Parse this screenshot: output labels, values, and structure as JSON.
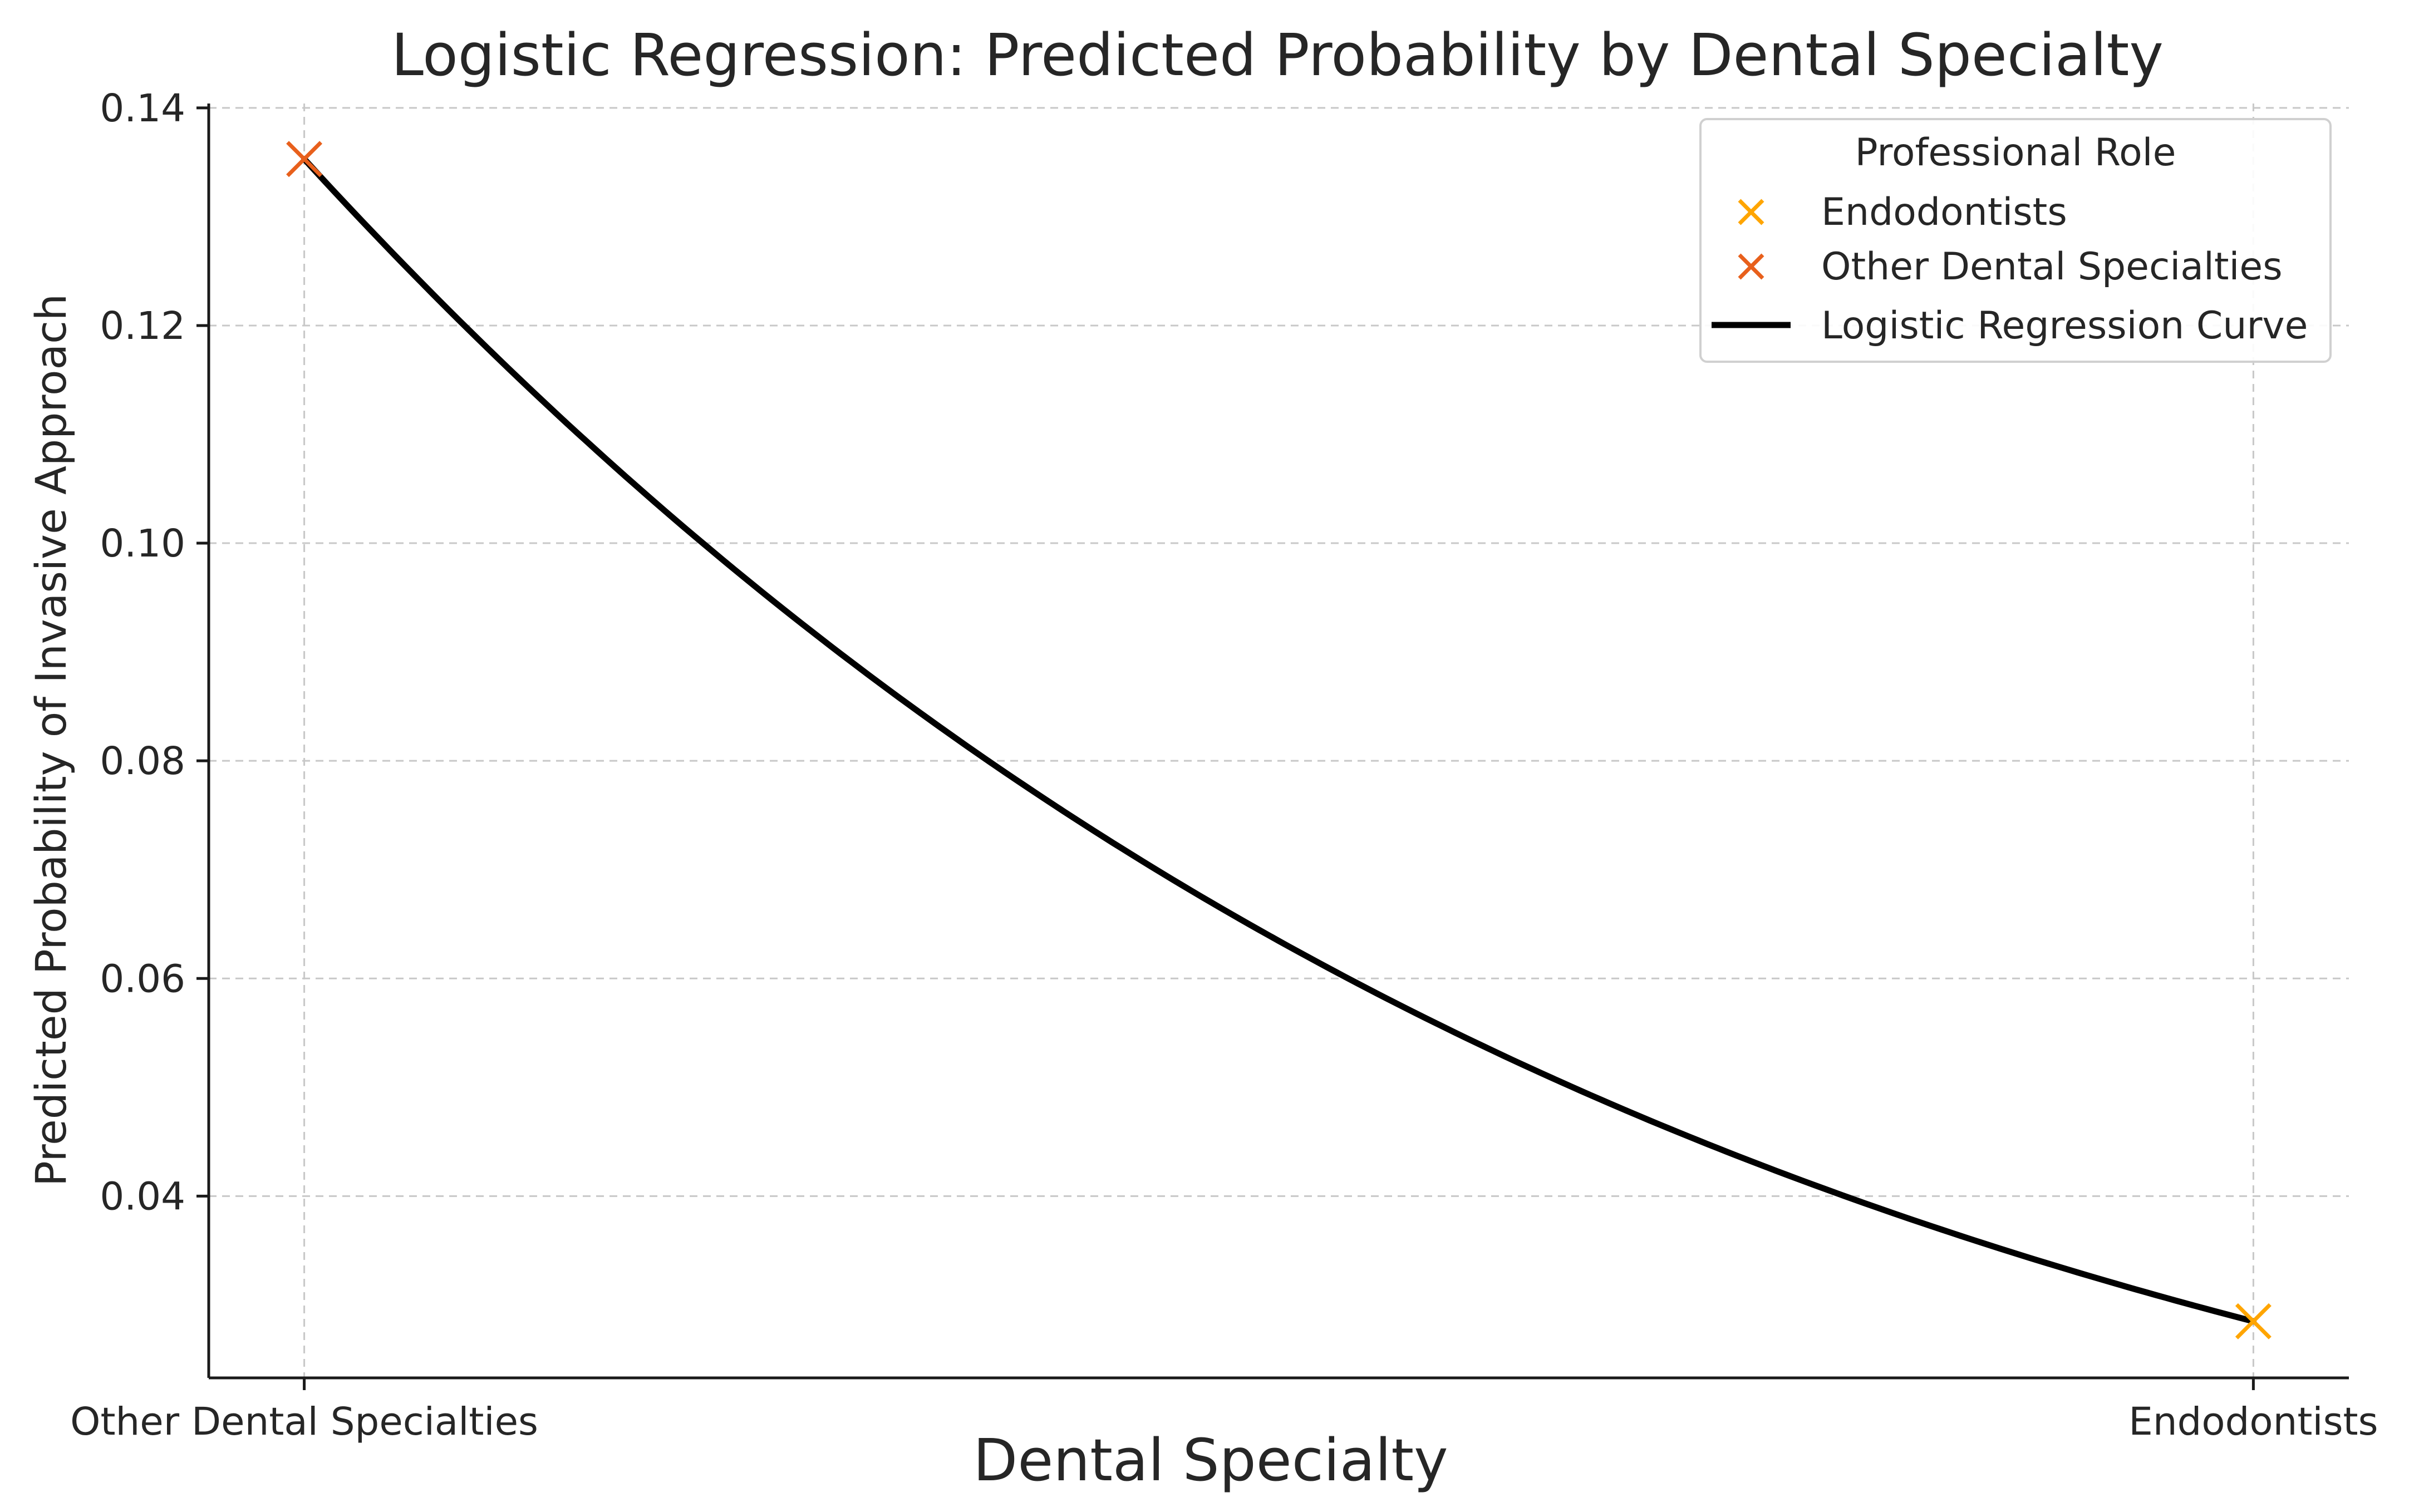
{
  "chart_data": {
    "type": "line",
    "title": "Logistic Regression: Predicted Probability by Dental Specialty",
    "xlabel": "Dental Specialty",
    "ylabel": "Predicted Probability of Invasive Approach",
    "x_categories": [
      "Other Dental Specialties",
      "Endodontists"
    ],
    "x_range": [
      -0.049,
      1.049
    ],
    "ylim": [
      0.0233,
      0.1404
    ],
    "y_ticks": [
      0.04,
      0.06,
      0.08,
      0.1,
      0.12,
      0.14
    ],
    "y_tick_labels": [
      "0.04",
      "0.06",
      "0.08",
      "0.10",
      "0.12",
      "0.14"
    ],
    "grid": true,
    "legend": {
      "title": "Professional Role",
      "position": "top-right",
      "entries": [
        {
          "label": "Endodontists",
          "kind": "marker",
          "color": "#FFA500"
        },
        {
          "label": "Other Dental Specialties",
          "kind": "marker",
          "color": "#E8601C"
        },
        {
          "label": "Logistic Regression Curve",
          "kind": "line",
          "color": "#000000"
        }
      ]
    },
    "series": [
      {
        "name": "Other Dental Specialties",
        "kind": "scatter",
        "marker": "x",
        "color": "#E8601C",
        "points": [
          {
            "x": 0,
            "y": 0.1353
          }
        ]
      },
      {
        "name": "Endodontists",
        "kind": "scatter",
        "marker": "x",
        "color": "#FFA500",
        "points": [
          {
            "x": 1,
            "y": 0.0285
          }
        ]
      },
      {
        "name": "Logistic Regression Curve",
        "kind": "line",
        "color": "#000000",
        "p0": 0.1353,
        "p1": 0.0285
      }
    ]
  }
}
